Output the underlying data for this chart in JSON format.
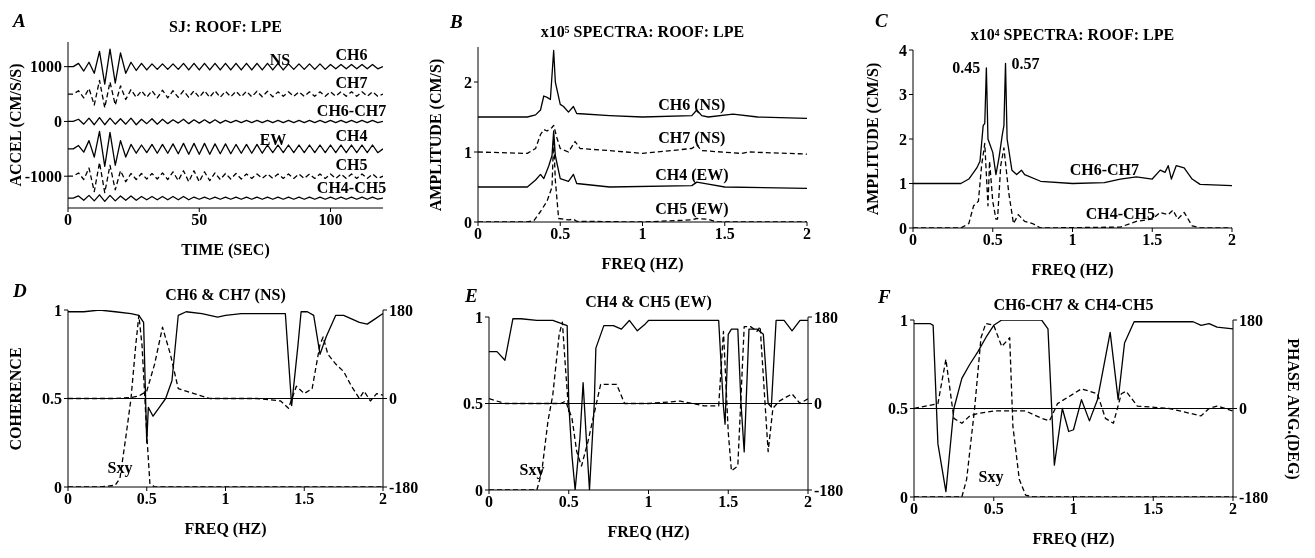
{
  "chart_data": [
    {
      "type": "line",
      "title": "SJ: ROOF: LPE",
      "xlabel": "TIME (SEC)",
      "ylabel": "ACCEL (CM/S/S)",
      "xlim": [
        0,
        120
      ],
      "xticks": [
        0,
        50,
        100
      ],
      "ylim": [
        -1580,
        1450
      ],
      "yticks": [
        -1000,
        0,
        1000
      ],
      "x": [
        0,
        2,
        4,
        6,
        8,
        10,
        12,
        14,
        16,
        18,
        20,
        22,
        24,
        26,
        28,
        30,
        32,
        34,
        36,
        38,
        40,
        42,
        44,
        46,
        48,
        50,
        52,
        54,
        56,
        58,
        60,
        62,
        64,
        66,
        68,
        70,
        72,
        74,
        76,
        78,
        80,
        82,
        84,
        86,
        88,
        90,
        92,
        94,
        96,
        98,
        100,
        102,
        104,
        106,
        108,
        110,
        112,
        114,
        116,
        118,
        120
      ],
      "series": [
        {
          "name": "CH6",
          "color": "#000000",
          "values": [
            1000,
            1000,
            1060,
            920,
            1080,
            880,
            1280,
            680,
            1320,
            700,
            1250,
            880,
            1080,
            930,
            1060,
            940,
            1050,
            950,
            1050,
            950,
            1050,
            950,
            1060,
            940,
            1060,
            940,
            1060,
            940,
            1060,
            940,
            1060,
            940,
            1060,
            940,
            1060,
            940,
            1060,
            940,
            1060,
            940,
            1060,
            940,
            1050,
            950,
            1050,
            950,
            1050,
            950,
            1050,
            950,
            1040,
            960,
            1040,
            960,
            1040,
            960,
            1040,
            960,
            1040,
            960,
            1000
          ]
        },
        {
          "name": "CH7",
          "color": "#000000",
          "line_style": "dashed",
          "values": [
            500,
            500,
            560,
            430,
            600,
            300,
            750,
            250,
            720,
            300,
            650,
            400,
            580,
            440,
            560,
            440,
            560,
            430,
            570,
            430,
            560,
            440,
            560,
            440,
            560,
            440,
            560,
            440,
            560,
            440,
            550,
            450,
            550,
            450,
            550,
            450,
            550,
            450,
            550,
            450,
            540,
            460,
            540,
            460,
            540,
            460,
            540,
            460,
            540,
            460,
            540,
            460,
            540,
            460,
            540,
            460,
            540,
            460,
            540,
            460,
            500
          ]
        },
        {
          "name": "CH6-CH7",
          "color": "#000000",
          "values": [
            0,
            0,
            40,
            -50,
            60,
            -60,
            70,
            -60,
            60,
            -50,
            50,
            -50,
            60,
            -60,
            40,
            -40,
            50,
            -50,
            40,
            -40,
            30,
            -30,
            40,
            -40,
            30,
            -30,
            30,
            -30,
            30,
            -30,
            20,
            -20,
            20,
            -20,
            20,
            -20,
            20,
            -20,
            20,
            -20,
            20,
            -20,
            20,
            -20,
            20,
            -20,
            20,
            -20,
            20,
            -20,
            20,
            -20,
            20,
            -20,
            20,
            -20,
            20,
            -20,
            20,
            -20,
            0
          ]
        },
        {
          "name": "CH4",
          "color": "#000000",
          "values": [
            -500,
            -500,
            -440,
            -560,
            -350,
            -650,
            -180,
            -820,
            -200,
            -800,
            -350,
            -650,
            -420,
            -580,
            -430,
            -570,
            -420,
            -580,
            -420,
            -580,
            -410,
            -590,
            -400,
            -600,
            -400,
            -600,
            -400,
            -600,
            -410,
            -590,
            -410,
            -590,
            -420,
            -580,
            -420,
            -580,
            -420,
            -580,
            -430,
            -570,
            -430,
            -570,
            -430,
            -570,
            -430,
            -570,
            -430,
            -570,
            -430,
            -570,
            -430,
            -570,
            -430,
            -570,
            -430,
            -570,
            -430,
            -570,
            -430,
            -570,
            -500
          ]
        },
        {
          "name": "CH5",
          "color": "#000000",
          "line_style": "dashed",
          "values": [
            -1000,
            -1000,
            -940,
            -1060,
            -850,
            -1280,
            -750,
            -1300,
            -800,
            -1250,
            -900,
            -1100,
            -950,
            -1060,
            -950,
            -1050,
            -950,
            -1050,
            -940,
            -1060,
            -920,
            -1080,
            -900,
            -1100,
            -900,
            -1100,
            -920,
            -1080,
            -940,
            -1060,
            -950,
            -1050,
            -950,
            -1050,
            -960,
            -1040,
            -960,
            -1040,
            -960,
            -1040,
            -960,
            -1040,
            -960,
            -1040,
            -960,
            -1040,
            -960,
            -1040,
            -960,
            -1040,
            -960,
            -1040,
            -960,
            -1040,
            -960,
            -1040,
            -960,
            -1040,
            -960,
            -1040,
            -1000
          ]
        },
        {
          "name": "CH4-CH5",
          "color": "#000000",
          "values": [
            -1400,
            -1400,
            -1360,
            -1440,
            -1350,
            -1450,
            -1340,
            -1460,
            -1350,
            -1450,
            -1360,
            -1440,
            -1360,
            -1440,
            -1370,
            -1430,
            -1370,
            -1430,
            -1370,
            -1430,
            -1370,
            -1430,
            -1370,
            -1430,
            -1380,
            -1420,
            -1380,
            -1420,
            -1380,
            -1420,
            -1380,
            -1420,
            -1380,
            -1420,
            -1380,
            -1420,
            -1380,
            -1420,
            -1380,
            -1420,
            -1380,
            -1420,
            -1380,
            -1420,
            -1380,
            -1420,
            -1380,
            -1420,
            -1380,
            -1420,
            -1380,
            -1420,
            -1380,
            -1420,
            -1380,
            -1420,
            -1380,
            -1420,
            -1380,
            -1420,
            -1400
          ]
        }
      ],
      "annotations": [
        "A",
        "NS",
        "EW"
      ]
    },
    {
      "type": "line",
      "title": "x10⁵  SPECTRA: ROOF: LPE",
      "xlabel": "FREQ (HZ)",
      "ylabel": "AMPLITUDE (CM/S)",
      "xlim": [
        0,
        2
      ],
      "xticks": [
        0,
        0.5,
        1,
        1.5,
        2
      ],
      "ylim": [
        0,
        2.5
      ],
      "yticks": [
        0,
        1,
        2
      ],
      "series": [
        {
          "name": "CH6 (NS)",
          "color": "#000000",
          "x": [
            0,
            0.3,
            0.35,
            0.38,
            0.4,
            0.42,
            0.44,
            0.46,
            0.47,
            0.5,
            0.52,
            0.55,
            0.58,
            0.6,
            0.8,
            1.0,
            1.3,
            1.33,
            1.36,
            1.4,
            1.55,
            1.7,
            2
          ],
          "values": [
            1.5,
            1.5,
            1.53,
            1.6,
            1.8,
            1.78,
            1.75,
            2.45,
            2.0,
            1.68,
            1.65,
            1.57,
            1.65,
            1.55,
            1.52,
            1.5,
            1.52,
            1.6,
            1.52,
            1.5,
            1.54,
            1.5,
            1.48
          ]
        },
        {
          "name": "CH7 (NS)",
          "color": "#000000",
          "line_style": "dashed",
          "x": [
            0,
            0.3,
            0.35,
            0.38,
            0.4,
            0.42,
            0.45,
            0.46,
            0.48,
            0.5,
            0.55,
            0.59,
            0.62,
            0.8,
            1.0,
            1.3,
            1.33,
            1.36,
            1.6,
            1.65,
            2
          ],
          "values": [
            1.0,
            0.98,
            1.05,
            1.25,
            1.32,
            1.3,
            1.35,
            1.38,
            1.2,
            1.05,
            1.0,
            1.15,
            1.05,
            1.02,
            0.98,
            1.05,
            1.1,
            1.02,
            0.98,
            1.0,
            0.97
          ]
        },
        {
          "name": "CH4 (EW)",
          "color": "#000000",
          "x": [
            0,
            0.3,
            0.35,
            0.38,
            0.4,
            0.43,
            0.45,
            0.46,
            0.47,
            0.5,
            0.55,
            0.58,
            0.6,
            0.8,
            1.3,
            1.33,
            1.4,
            1.5,
            2
          ],
          "values": [
            0.5,
            0.5,
            0.6,
            0.68,
            0.62,
            0.8,
            0.95,
            1.3,
            0.95,
            0.62,
            0.58,
            0.68,
            0.55,
            0.5,
            0.52,
            0.57,
            0.54,
            0.5,
            0.48
          ]
        },
        {
          "name": "CH5 (EW)",
          "color": "#000000",
          "line_style": "dashed",
          "x": [
            0,
            0.3,
            0.34,
            0.38,
            0.42,
            0.45,
            0.46,
            0.47,
            0.49,
            0.55,
            0.58,
            0.6,
            1.0,
            1.3,
            1.33,
            1.4,
            1.45,
            2
          ],
          "values": [
            0,
            0,
            0.02,
            0.15,
            0.3,
            0.5,
            1.2,
            0.6,
            0.05,
            0.03,
            0.04,
            0.01,
            0,
            0.03,
            0.05,
            0.04,
            0,
            0
          ]
        }
      ],
      "annotations": [
        "B"
      ]
    },
    {
      "type": "line",
      "title": "x10⁴  SPECTRA: ROOF: LPE",
      "xlabel": "FREQ (HZ)",
      "ylabel": "AMPLITUDE (CM/S)",
      "xlim": [
        0,
        2
      ],
      "xticks": [
        0,
        0.5,
        1,
        1.5,
        2
      ],
      "ylim": [
        0,
        4
      ],
      "yticks": [
        0,
        1,
        2,
        3,
        4
      ],
      "series": [
        {
          "name": "CH6-CH7",
          "color": "#000000",
          "x": [
            0,
            0.3,
            0.35,
            0.4,
            0.42,
            0.44,
            0.45,
            0.46,
            0.47,
            0.48,
            0.5,
            0.52,
            0.54,
            0.56,
            0.57,
            0.58,
            0.59,
            0.62,
            0.65,
            0.68,
            0.7,
            0.8,
            1.0,
            1.2,
            1.3,
            1.4,
            1.5,
            1.55,
            1.58,
            1.6,
            1.62,
            1.65,
            1.7,
            1.75,
            1.8,
            2
          ],
          "values": [
            1,
            1.0,
            1.1,
            1.35,
            1.5,
            2.3,
            2.35,
            3.6,
            2.0,
            1.9,
            1.7,
            1.2,
            1.6,
            2.1,
            2.3,
            3.7,
            2.0,
            1.3,
            1.2,
            1.3,
            1.2,
            1.05,
            1.0,
            1.02,
            1.1,
            1.15,
            1.1,
            1.3,
            1.25,
            1.4,
            1.1,
            1.4,
            1.35,
            1.1,
            0.98,
            0.95
          ]
        },
        {
          "name": "CH4-CH5",
          "color": "#000000",
          "line_style": "dashed",
          "x": [
            0,
            0.3,
            0.35,
            0.38,
            0.41,
            0.43,
            0.45,
            0.47,
            0.48,
            0.5,
            0.52,
            0.53,
            0.55,
            0.57,
            0.6,
            0.63,
            0.66,
            0.7,
            0.75,
            0.8,
            1.3,
            1.4,
            1.5,
            1.55,
            1.6,
            1.63,
            1.66,
            1.7,
            1.75,
            1.8,
            2
          ],
          "values": [
            0,
            0,
            0.1,
            0.5,
            0.6,
            1.4,
            1.9,
            0.5,
            1.5,
            0.6,
            0.2,
            0.2,
            1.4,
            1.8,
            0.8,
            0.1,
            0.3,
            0.15,
            0.1,
            0,
            0.02,
            0.15,
            0.2,
            0.35,
            0.3,
            0.4,
            0.2,
            0.35,
            0.05,
            0,
            0
          ]
        }
      ],
      "annotations": [
        "C",
        {
          "text": "0.45",
          "x": 0.46,
          "y": 3.6
        },
        {
          "text": "0.57",
          "x": 0.58,
          "y": 3.7
        }
      ]
    },
    {
      "type": "line",
      "title": "CH6 & CH7 (NS)",
      "xlabel": "FREQ (HZ)",
      "ylabel": "COHERENCE",
      "xlim": [
        0,
        2
      ],
      "xticks": [
        0,
        0.5,
        1,
        1.5,
        2
      ],
      "ylim": [
        0,
        1
      ],
      "yticks": [
        0,
        0.5,
        1
      ],
      "y2lim": [
        -180,
        180
      ],
      "y2ticks": [
        -180,
        0,
        180
      ],
      "ref_lines": [
        {
          "axis": "y2",
          "value": 0
        }
      ],
      "series": [
        {
          "color": "#000000",
          "x": [
            0,
            0.1,
            0.2,
            0.3,
            0.4,
            0.45,
            0.48,
            0.5,
            0.51,
            0.54,
            0.58,
            0.62,
            0.66,
            0.7,
            0.75,
            0.85,
            0.95,
            1.0,
            1.1,
            1.2,
            1.3,
            1.38,
            1.42,
            1.46,
            1.48,
            1.52,
            1.56,
            1.6,
            1.64,
            1.7,
            1.75,
            1.8,
            1.85,
            1.9,
            1.95,
            2
          ],
          "values": [
            0.99,
            0.99,
            1.0,
            0.99,
            0.98,
            0.97,
            0.93,
            0.25,
            0.45,
            0.4,
            0.45,
            0.5,
            0.6,
            0.97,
            0.99,
            0.98,
            0.96,
            0.97,
            0.98,
            0.98,
            0.98,
            0.98,
            0.46,
            0.8,
            0.99,
            0.99,
            0.97,
            0.75,
            0.85,
            0.97,
            0.97,
            0.95,
            0.93,
            0.92,
            0.95,
            0.98
          ]
        },
        {
          "color": "#000000",
          "axis": "y2",
          "line_style": "dashed",
          "x": [
            0,
            0.3,
            0.4,
            0.45,
            0.5,
            0.55,
            0.6,
            0.65,
            0.7,
            0.75,
            0.8,
            0.9,
            1.0,
            1.2,
            1.35,
            1.4,
            1.45,
            1.5,
            1.55,
            1.6,
            1.62,
            1.65,
            1.7,
            1.75,
            1.8,
            1.85,
            1.88,
            1.92,
            1.96,
            2
          ],
          "values": [
            0,
            0,
            2,
            5,
            15,
            70,
            145,
            90,
            20,
            15,
            10,
            0,
            0,
            0,
            -5,
            -20,
            25,
            10,
            20,
            110,
            125,
            90,
            70,
            55,
            25,
            0,
            15,
            -5,
            10,
            7
          ]
        },
        {
          "color": "#000000",
          "line_style": "dashed",
          "x": [
            0,
            0.2,
            0.3,
            0.33,
            0.37,
            0.4,
            0.43,
            0.45,
            0.47,
            0.5,
            0.52,
            0.55,
            2
          ],
          "values": [
            0,
            0,
            0.01,
            0.05,
            0.3,
            0.5,
            0.8,
            0.97,
            0.8,
            0.3,
            0.02,
            0,
            0
          ]
        }
      ],
      "annotations": [
        "D",
        "Sxy"
      ]
    },
    {
      "type": "line",
      "title": "CH4 & CH5 (EW)",
      "xlabel": "FREQ (HZ)",
      "xlim": [
        0,
        2
      ],
      "xticks": [
        0,
        0.5,
        1,
        1.5,
        2
      ],
      "ylim": [
        0,
        1
      ],
      "yticks": [
        0,
        0.5,
        1
      ],
      "y2lim": [
        -180,
        180
      ],
      "y2ticks": [
        -180,
        0,
        180
      ],
      "ref_lines": [
        {
          "axis": "y2",
          "value": 0
        }
      ],
      "series": [
        {
          "color": "#000000",
          "x": [
            0,
            0.05,
            0.1,
            0.15,
            0.2,
            0.3,
            0.4,
            0.46,
            0.49,
            0.5,
            0.52,
            0.54,
            0.57,
            0.59,
            0.61,
            0.63,
            0.66,
            0.67,
            0.72,
            0.78,
            0.83,
            0.88,
            0.93,
            0.98,
            1.0,
            1.2,
            1.4,
            1.44,
            1.47,
            1.48,
            1.5,
            1.52,
            1.56,
            1.58,
            1.6,
            1.63,
            1.68,
            1.72,
            1.75,
            1.77,
            1.8,
            1.85,
            1.9,
            1.95,
            2
          ],
          "values": [
            0.8,
            0.8,
            0.75,
            0.99,
            0.99,
            0.98,
            0.98,
            0.96,
            0.95,
            0.5,
            0.2,
            0.0,
            0.3,
            0.62,
            0.3,
            0.0,
            0.5,
            0.82,
            0.95,
            0.95,
            0.93,
            0.98,
            0.92,
            0.96,
            0.98,
            0.98,
            0.98,
            0.98,
            0.48,
            0.38,
            0.9,
            0.93,
            0.93,
            0.5,
            0.22,
            0.93,
            0.93,
            0.9,
            0.5,
            0.48,
            0.98,
            0.98,
            0.92,
            0.98,
            0.98
          ]
        },
        {
          "color": "#000000",
          "axis": "y2",
          "line_style": "dashed",
          "x": [
            0,
            0.1,
            0.3,
            0.45,
            0.48,
            0.52,
            0.55,
            0.58,
            0.62,
            0.66,
            0.7,
            0.8,
            0.85,
            1.0,
            1.2,
            1.35,
            1.44,
            1.47,
            1.5,
            1.52,
            1.56,
            1.6,
            1.64,
            1.68,
            1.7,
            1.75,
            1.78,
            1.82,
            1.9,
            1.95,
            2
          ],
          "values": [
            10,
            0,
            0,
            0,
            5,
            -30,
            -100,
            -130,
            -80,
            -20,
            40,
            40,
            0,
            0,
            5,
            -5,
            -5,
            150,
            -60,
            -140,
            -130,
            160,
            160,
            150,
            160,
            -100,
            -10,
            5,
            20,
            0,
            10
          ]
        },
        {
          "color": "#000000",
          "line_style": "dashed",
          "x": [
            0,
            0.3,
            0.33,
            0.37,
            0.4,
            0.44,
            0.46,
            0.48,
            0.5
          ],
          "values": [
            0,
            0,
            0.1,
            0.4,
            0.55,
            0.9,
            0.97,
            0.7,
            0.45
          ]
        }
      ],
      "annotations": [
        "E",
        "Sxy"
      ]
    },
    {
      "type": "line",
      "title": "CH6-CH7 & CH4-CH5",
      "xlabel": "FREQ (HZ)",
      "y2label": "PHASE ANG.(DEG)",
      "xlim": [
        0,
        2
      ],
      "xticks": [
        0,
        0.5,
        1,
        1.5,
        2
      ],
      "ylim": [
        0,
        1
      ],
      "yticks": [
        0,
        0.5,
        1
      ],
      "y2lim": [
        -180,
        180
      ],
      "y2ticks": [
        -180,
        0,
        180
      ],
      "ref_lines": [
        {
          "axis": "y2",
          "value": 0
        }
      ],
      "series": [
        {
          "color": "#000000",
          "x": [
            0,
            0.1,
            0.12,
            0.15,
            0.2,
            0.25,
            0.3,
            0.35,
            0.4,
            0.45,
            0.5,
            0.55,
            0.8,
            0.84,
            0.88,
            0.93,
            0.97,
            1.0,
            1.05,
            1.1,
            1.15,
            1.23,
            1.28,
            1.32,
            1.38,
            1.5,
            1.75,
            1.8,
            1.85,
            1.9,
            2
          ],
          "values": [
            0.98,
            0.98,
            0.97,
            0.3,
            0.03,
            0.5,
            0.67,
            0.75,
            0.82,
            0.9,
            0.97,
            1.0,
            1.0,
            0.95,
            0.18,
            0.5,
            0.37,
            0.38,
            0.55,
            0.43,
            0.55,
            0.93,
            0.55,
            0.87,
            0.99,
            0.99,
            0.99,
            0.97,
            0.98,
            0.96,
            0.95
          ]
        },
        {
          "color": "#000000",
          "axis": "y2",
          "line_style": "dashed",
          "x": [
            0,
            0.15,
            0.2,
            0.25,
            0.3,
            0.35,
            0.4,
            0.5,
            0.6,
            0.7,
            0.8,
            0.85,
            0.9,
            1.0,
            1.05,
            1.15,
            1.2,
            1.25,
            1.3,
            1.33,
            1.4,
            1.6,
            1.8,
            1.85,
            1.9,
            2
          ],
          "values": [
            0,
            10,
            100,
            -20,
            -30,
            -15,
            -10,
            -5,
            -5,
            -5,
            -20,
            -25,
            10,
            30,
            40,
            30,
            -20,
            -30,
            30,
            35,
            5,
            0,
            -15,
            0,
            5,
            -5
          ]
        },
        {
          "color": "#000000",
          "line_style": "dashed",
          "x": [
            0,
            0.3,
            0.33,
            0.38,
            0.42,
            0.45,
            0.5,
            0.55,
            0.6,
            0.62,
            0.66,
            0.7,
            0.75,
            2
          ],
          "values": [
            0,
            0,
            0.1,
            0.5,
            0.9,
            0.98,
            0.97,
            0.85,
            0.9,
            0.4,
            0.1,
            0.01,
            0,
            0
          ]
        }
      ],
      "annotations": [
        "F",
        "Sxy"
      ]
    }
  ]
}
